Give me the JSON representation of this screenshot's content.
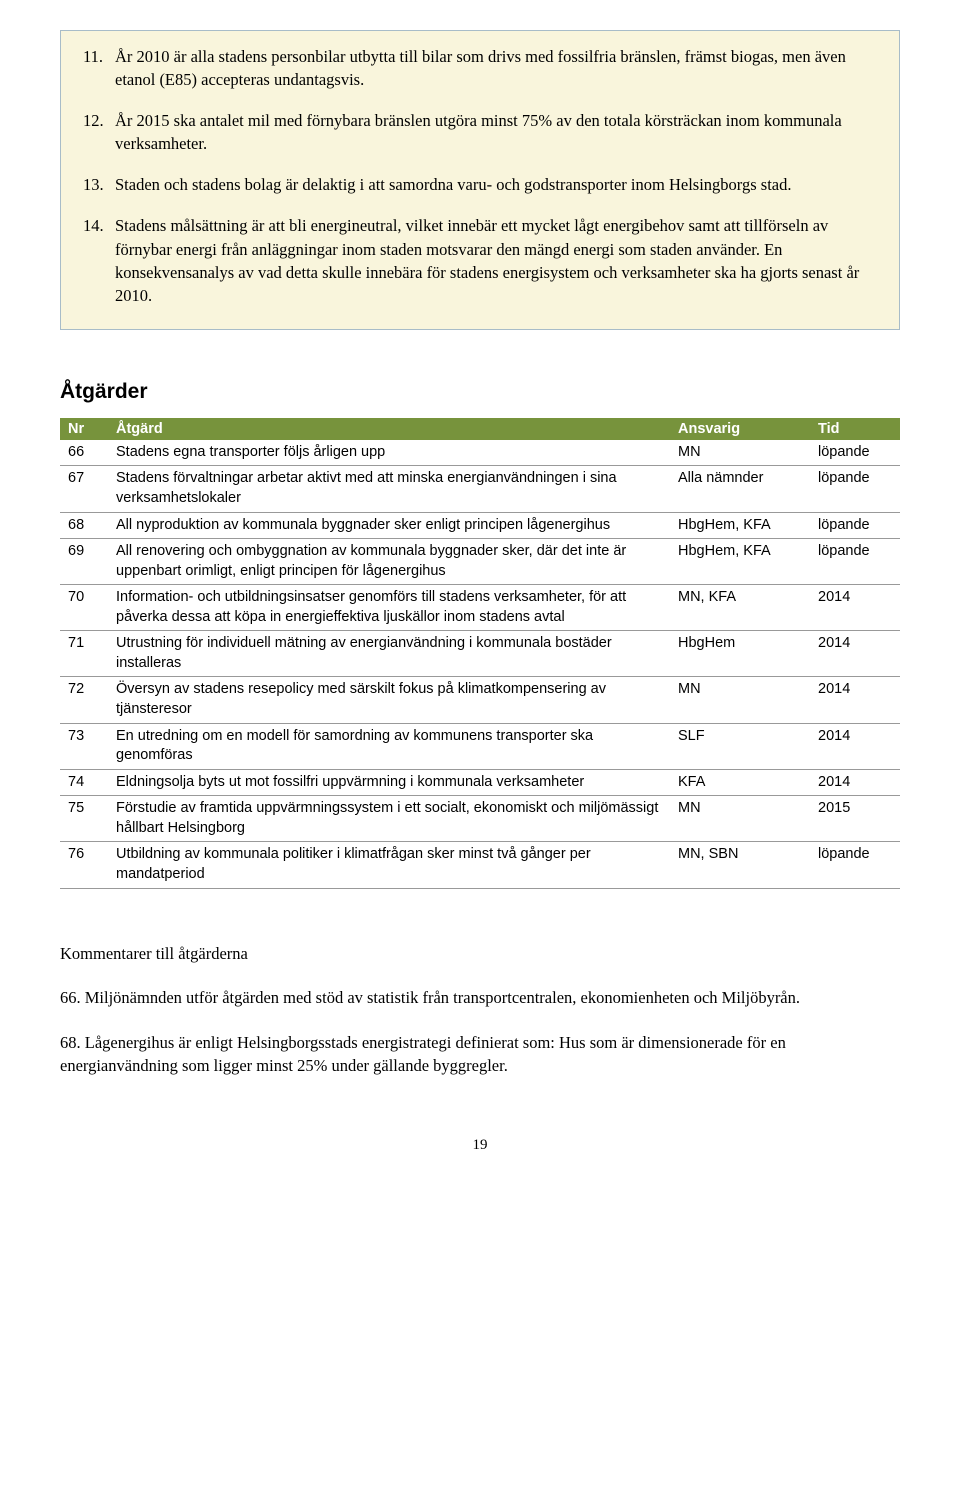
{
  "info_box": {
    "background_color": "#f9f5dc",
    "border_color": "#a8bcc8",
    "items": [
      {
        "num": "11.",
        "text": "År 2010 är alla stadens personbilar utbytta till bilar som drivs med fossilfria bränslen, främst biogas, men även etanol (E85) accepteras undantagsvis."
      },
      {
        "num": "12.",
        "text": "År 2015 ska antalet mil med förnybara bränslen utgöra minst 75% av den totala körsträckan inom kommunala verksamheter."
      },
      {
        "num": "13.",
        "text": "Staden och stadens bolag är delaktig i att samordna varu- och godstransporter inom Helsingborgs stad."
      },
      {
        "num": "14.",
        "text": "Stadens målsättning är att bli energineutral, vilket innebär ett mycket lågt energibehov samt att tillförseln av förnybar energi från anläggningar inom staden motsvarar den mängd energi som staden använder. En konsekvensanalys av vad detta skulle innebära för stadens energisystem och verksamheter ska ha gjorts senast år 2010."
      }
    ]
  },
  "section_title": "Åtgärder",
  "table": {
    "header_bg": "#77933c",
    "header_fg": "#ffffff",
    "columns": [
      "Nr",
      "Åtgärd",
      "Ansvarig",
      "Tid"
    ],
    "rows": [
      [
        "66",
        "Stadens egna transporter följs årligen upp",
        "MN",
        "löpande"
      ],
      [
        "67",
        "Stadens förvaltningar arbetar aktivt med att minska energianvändningen i sina verksamhetslokaler",
        "Alla nämnder",
        "löpande"
      ],
      [
        "68",
        "All nyproduktion av kommunala byggnader sker enligt principen lågenergihus",
        "HbgHem, KFA",
        "löpande"
      ],
      [
        "69",
        "All renovering och ombyggnation av kommunala byggnader sker, där det inte är uppenbart orimligt, enligt principen för lågenergihus",
        "HbgHem, KFA",
        "löpande"
      ],
      [
        "70",
        "Information- och utbildningsinsatser genomförs till stadens verksamheter, för att påverka dessa att köpa in energieffektiva ljuskällor inom stadens avtal",
        "MN, KFA",
        "2014"
      ],
      [
        "71",
        "Utrustning för individuell mätning av energianvändning i kommunala bostäder installeras",
        "HbgHem",
        "2014"
      ],
      [
        "72",
        "Översyn av stadens resepolicy med särskilt fokus på klimatkompensering av tjänsteresor",
        "MN",
        "2014"
      ],
      [
        "73",
        "En utredning om en modell för samordning av kommunens transporter ska genomföras",
        "SLF",
        "2014"
      ],
      [
        "74",
        "Eldningsolja byts ut mot fossilfri uppvärmning i kommunala verksamheter",
        "KFA",
        "2014"
      ],
      [
        "75",
        "Förstudie av framtida uppvärmningssystem i ett socialt, ekonomiskt och miljömässigt hållbart Helsingborg",
        "MN",
        "2015"
      ],
      [
        "76",
        "Utbildning av kommunala politiker i klimatfrågan sker minst två gånger per mandatperiod",
        "MN, SBN",
        "löpande"
      ]
    ]
  },
  "comments": {
    "title": "Kommentarer till åtgärderna",
    "paras": [
      "66. Miljönämnden utför åtgärden med stöd av statistik från transportcentralen, ekonomienheten och Miljöbyrån.",
      "68. Lågenergihus är enligt Helsingborgsstads energistrategi definierat som: Hus som är dimensionerade för en energianvändning som ligger minst 25% under gällande byggregler."
    ]
  },
  "page_number": "19"
}
